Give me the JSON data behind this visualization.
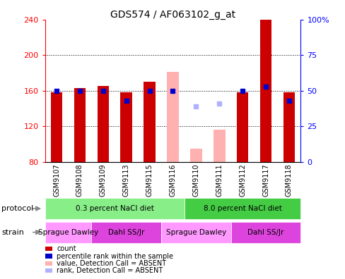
{
  "title": "GDS574 / AF063102_g_at",
  "samples": [
    "GSM9107",
    "GSM9108",
    "GSM9109",
    "GSM9113",
    "GSM9115",
    "GSM9116",
    "GSM9110",
    "GSM9111",
    "GSM9112",
    "GSM9117",
    "GSM9118"
  ],
  "count_values": [
    158,
    163,
    165,
    158,
    170,
    null,
    null,
    null,
    158,
    240,
    158
  ],
  "rank_values": [
    50,
    50,
    50,
    43,
    50,
    50,
    null,
    null,
    50,
    53,
    43
  ],
  "absent_count_values": [
    null,
    null,
    null,
    null,
    null,
    181,
    95,
    116,
    null,
    null,
    null
  ],
  "absent_rank_values": [
    null,
    null,
    null,
    null,
    null,
    null,
    39,
    41,
    null,
    null,
    null
  ],
  "ylim_left": [
    80,
    240
  ],
  "ylim_right": [
    0,
    100
  ],
  "yticks_left": [
    80,
    120,
    160,
    200,
    240
  ],
  "yticks_right": [
    0,
    25,
    50,
    75,
    100
  ],
  "yticklabels_right": [
    "0",
    "25",
    "50",
    "75",
    "100%"
  ],
  "bar_color": "#cc0000",
  "rank_color": "#0000cc",
  "absent_bar_color": "#ffb0b0",
  "absent_rank_color": "#b0b0ff",
  "bg_color": "#ffffff",
  "protocol_groups": [
    {
      "label": "0.3 percent NaCl diet",
      "start": 0,
      "end": 5,
      "color": "#88ee88"
    },
    {
      "label": "8.0 percent NaCl diet",
      "start": 6,
      "end": 10,
      "color": "#44cc44"
    }
  ],
  "strain_groups": [
    {
      "label": "Sprague Dawley",
      "start": 0,
      "end": 1,
      "color": "#ff99ff"
    },
    {
      "label": "Dahl SS/Jr",
      "start": 2,
      "end": 4,
      "color": "#dd44dd"
    },
    {
      "label": "Sprague Dawley",
      "start": 5,
      "end": 7,
      "color": "#ff99ff"
    },
    {
      "label": "Dahl SS/Jr",
      "start": 8,
      "end": 10,
      "color": "#dd44dd"
    }
  ],
  "legend_items": [
    {
      "label": "count",
      "color": "#cc0000"
    },
    {
      "label": "percentile rank within the sample",
      "color": "#0000cc"
    },
    {
      "label": "value, Detection Call = ABSENT",
      "color": "#ffb0b0"
    },
    {
      "label": "rank, Detection Call = ABSENT",
      "color": "#b0b0ff"
    }
  ]
}
